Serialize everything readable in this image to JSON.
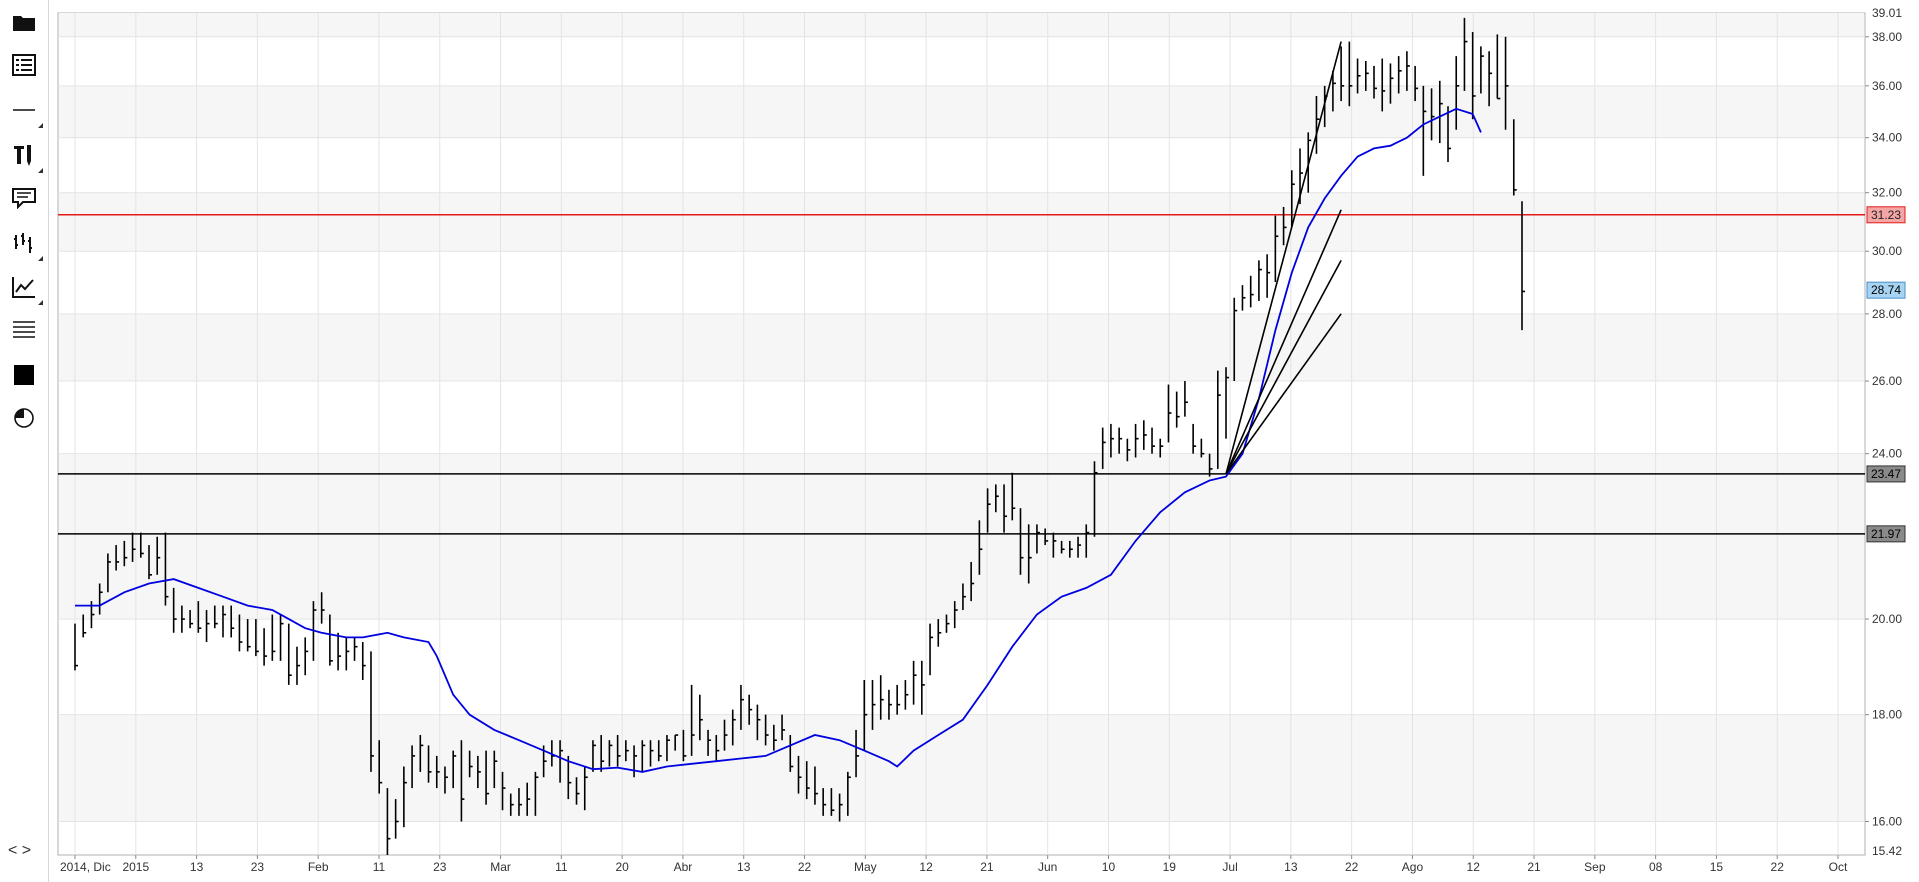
{
  "toolbar": {
    "items": [
      {
        "name": "open-folder-icon"
      },
      {
        "name": "chart-list-icon"
      },
      {
        "name": "horizontal-line-tool-icon"
      },
      {
        "name": "drawing-tools-icon"
      },
      {
        "name": "annotation-comment-icon"
      },
      {
        "name": "bar-style-icon"
      },
      {
        "name": "indicator-chart-icon"
      },
      {
        "name": "lines-menu-icon"
      },
      {
        "name": "fill-square-icon"
      },
      {
        "name": "pie-icon"
      }
    ],
    "nav_label": "< >"
  },
  "chart_data": {
    "type": "ohlc",
    "y_axis": {
      "ticks": [
        "16.00",
        "18.00",
        "20.00",
        "24.00",
        "26.00",
        "28.00",
        "30.00",
        "32.00",
        "34.00",
        "36.00",
        "38.00"
      ],
      "min_label": "15.42",
      "max_label": "39.01",
      "range": [
        15.42,
        39.01
      ],
      "scale": "log"
    },
    "x_axis": {
      "labels": [
        "2014, Dic",
        "2015",
        "13",
        "23",
        "Feb",
        "11",
        "23",
        "Mar",
        "11",
        "20",
        "Abr",
        "13",
        "22",
        "May",
        "12",
        "21",
        "Jun",
        "10",
        "19",
        "Jul",
        "13",
        "22",
        "Ago",
        "12",
        "21",
        "Sep",
        "08",
        "15",
        "22",
        "Oct"
      ]
    },
    "horizontal_lines": [
      {
        "value": 31.23,
        "label": "31.23",
        "color": "#e41b17"
      },
      {
        "value": 23.47,
        "label": "23.47",
        "color": "#000000"
      },
      {
        "value": 21.97,
        "label": "21.97",
        "color": "#000000"
      }
    ],
    "last_price": {
      "value": 28.74,
      "label": "28.74",
      "color": "#a8d4f3"
    },
    "moving_average": {
      "color": "#0000e0",
      "values": [
        [
          0,
          20.3
        ],
        [
          3,
          20.3
        ],
        [
          6,
          20.6
        ],
        [
          9,
          20.8
        ],
        [
          12,
          20.9
        ],
        [
          15,
          20.7
        ],
        [
          18,
          20.5
        ],
        [
          21,
          20.3
        ],
        [
          24,
          20.2
        ],
        [
          26,
          20.0
        ],
        [
          28,
          19.8
        ],
        [
          30,
          19.7
        ],
        [
          33,
          19.6
        ],
        [
          35,
          19.6
        ],
        [
          38,
          19.7
        ],
        [
          40,
          19.6
        ],
        [
          43,
          19.5
        ],
        [
          44,
          19.2
        ],
        [
          46,
          18.4
        ],
        [
          48,
          18.0
        ],
        [
          51,
          17.7
        ],
        [
          54,
          17.5
        ],
        [
          57,
          17.3
        ],
        [
          60,
          17.1
        ],
        [
          63,
          16.95
        ],
        [
          66,
          16.98
        ],
        [
          69,
          16.9
        ],
        [
          72,
          17.0
        ],
        [
          75,
          17.05
        ],
        [
          78,
          17.1
        ],
        [
          81,
          17.15
        ],
        [
          84,
          17.2
        ],
        [
          87,
          17.4
        ],
        [
          90,
          17.6
        ],
        [
          93,
          17.5
        ],
        [
          96,
          17.3
        ],
        [
          99,
          17.1
        ],
        [
          100,
          17.0
        ],
        [
          102,
          17.3
        ],
        [
          105,
          17.6
        ],
        [
          108,
          17.9
        ],
        [
          111,
          18.6
        ],
        [
          114,
          19.4
        ],
        [
          117,
          20.1
        ],
        [
          120,
          20.5
        ],
        [
          123,
          20.7
        ],
        [
          126,
          21.0
        ],
        [
          129,
          21.8
        ],
        [
          132,
          22.5
        ],
        [
          135,
          23.0
        ],
        [
          138,
          23.3
        ],
        [
          140,
          23.4
        ],
        [
          142,
          24.0
        ],
        [
          144,
          25.5
        ],
        [
          146,
          27.5
        ],
        [
          148,
          29.3
        ],
        [
          150,
          30.8
        ],
        [
          152,
          31.8
        ],
        [
          154,
          32.6
        ],
        [
          156,
          33.3
        ],
        [
          158,
          33.6
        ],
        [
          160,
          33.7
        ],
        [
          162,
          34.0
        ],
        [
          164,
          34.5
        ],
        [
          166,
          34.8
        ],
        [
          168,
          35.1
        ],
        [
          170,
          34.9
        ],
        [
          171,
          34.2
        ]
      ]
    },
    "bars": [
      [
        19.9,
        18.9,
        19.0
      ],
      [
        20.1,
        19.6,
        19.7
      ],
      [
        20.4,
        19.8,
        20.1
      ],
      [
        20.8,
        20.1,
        20.6
      ],
      [
        21.5,
        20.6,
        21.3
      ],
      [
        21.7,
        21.1,
        21.3
      ],
      [
        21.8,
        21.2,
        21.4
      ],
      [
        22.0,
        21.3,
        21.6
      ],
      [
        22.0,
        21.4,
        21.5
      ],
      [
        21.7,
        20.9,
        21.0
      ],
      [
        21.9,
        21.0,
        21.4
      ],
      [
        22.0,
        20.3,
        20.5
      ],
      [
        20.7,
        19.7,
        20.0
      ],
      [
        20.3,
        19.7,
        20.0
      ],
      [
        20.2,
        19.8,
        19.9
      ],
      [
        20.4,
        19.7,
        19.8
      ],
      [
        20.2,
        19.5,
        19.9
      ],
      [
        20.3,
        19.8,
        19.9
      ],
      [
        20.3,
        19.6,
        20.1
      ],
      [
        20.3,
        19.6,
        19.8
      ],
      [
        20.1,
        19.3,
        19.5
      ],
      [
        20.0,
        19.3,
        19.4
      ],
      [
        20.0,
        19.2,
        19.3
      ],
      [
        19.8,
        19.0,
        19.2
      ],
      [
        20.1,
        19.1,
        19.3
      ],
      [
        20.1,
        19.1,
        19.9
      ],
      [
        19.9,
        18.6,
        18.8
      ],
      [
        19.4,
        18.6,
        19.0
      ],
      [
        19.6,
        18.8,
        19.3
      ],
      [
        20.4,
        19.1,
        20.2
      ],
      [
        20.6,
        19.9,
        20.2
      ],
      [
        20.1,
        19.0,
        19.1
      ],
      [
        19.7,
        18.9,
        19.2
      ],
      [
        19.6,
        18.9,
        19.3
      ],
      [
        19.6,
        19.1,
        19.4
      ],
      [
        19.5,
        18.7,
        19.0
      ],
      [
        19.3,
        16.9,
        17.2
      ],
      [
        17.5,
        16.5,
        16.7
      ],
      [
        16.6,
        15.42,
        15.7
      ],
      [
        16.4,
        15.7,
        16.0
      ],
      [
        17.0,
        15.9,
        16.7
      ],
      [
        17.4,
        16.6,
        17.2
      ],
      [
        17.6,
        16.9,
        17.4
      ],
      [
        17.4,
        16.7,
        16.9
      ],
      [
        17.2,
        16.6,
        16.9
      ],
      [
        17.0,
        16.5,
        16.8
      ],
      [
        17.3,
        16.6,
        17.2
      ],
      [
        17.5,
        16.0,
        16.4
      ],
      [
        17.3,
        16.8,
        17.0
      ],
      [
        17.2,
        16.6,
        16.9
      ],
      [
        17.3,
        16.3,
        16.5
      ],
      [
        17.3,
        16.6,
        17.1
      ],
      [
        16.9,
        16.2,
        16.6
      ],
      [
        16.5,
        16.1,
        16.3
      ],
      [
        16.6,
        16.1,
        16.3
      ],
      [
        16.7,
        16.1,
        16.4
      ],
      [
        16.9,
        16.1,
        16.8
      ],
      [
        17.4,
        16.8,
        17.1
      ],
      [
        17.5,
        17.0,
        17.2
      ],
      [
        17.5,
        16.7,
        17.3
      ],
      [
        17.2,
        16.4,
        16.7
      ],
      [
        16.8,
        16.3,
        16.5
      ],
      [
        17.0,
        16.2,
        16.8
      ],
      [
        17.5,
        16.9,
        17.4
      ],
      [
        17.6,
        16.9,
        17.1
      ],
      [
        17.5,
        17.0,
        17.4
      ],
      [
        17.6,
        17.0,
        17.2
      ],
      [
        17.5,
        17.1,
        17.3
      ],
      [
        17.4,
        16.8,
        17.2
      ],
      [
        17.5,
        16.9,
        17.4
      ],
      [
        17.5,
        17.0,
        17.3
      ],
      [
        17.5,
        17.1,
        17.2
      ],
      [
        17.6,
        17.1,
        17.5
      ],
      [
        17.6,
        17.3,
        17.6
      ],
      [
        17.7,
        17.1,
        17.2
      ],
      [
        18.6,
        17.2,
        17.6
      ],
      [
        18.4,
        17.5,
        17.9
      ],
      [
        17.7,
        17.2,
        17.5
      ],
      [
        17.6,
        17.1,
        17.3
      ],
      [
        17.9,
        17.3,
        17.6
      ],
      [
        18.1,
        17.4,
        17.9
      ],
      [
        18.6,
        17.7,
        18.3
      ],
      [
        18.4,
        17.8,
        18.1
      ],
      [
        18.2,
        17.5,
        17.9
      ],
      [
        18.0,
        17.4,
        17.6
      ],
      [
        17.8,
        17.3,
        17.5
      ],
      [
        18.0,
        17.5,
        17.7
      ],
      [
        17.6,
        16.9,
        17.0
      ],
      [
        17.2,
        16.5,
        16.8
      ],
      [
        17.1,
        16.4,
        16.6
      ],
      [
        17.0,
        16.3,
        16.5
      ],
      [
        16.6,
        16.1,
        16.3
      ],
      [
        16.6,
        16.1,
        16.2
      ],
      [
        16.5,
        16.0,
        16.3
      ],
      [
        16.9,
        16.1,
        16.8
      ],
      [
        17.7,
        16.8,
        17.2
      ],
      [
        18.7,
        17.3,
        18.0
      ],
      [
        18.7,
        17.7,
        18.2
      ],
      [
        18.8,
        17.9,
        18.3
      ],
      [
        18.5,
        17.9,
        18.2
      ],
      [
        18.6,
        18.0,
        18.2
      ],
      [
        18.7,
        18.1,
        18.4
      ],
      [
        19.1,
        18.2,
        18.8
      ],
      [
        19.1,
        18.0,
        18.6
      ],
      [
        19.9,
        18.8,
        19.6
      ],
      [
        20.0,
        19.4,
        19.7
      ],
      [
        20.1,
        19.7,
        19.9
      ],
      [
        20.4,
        19.8,
        20.2
      ],
      [
        20.8,
        20.2,
        20.5
      ],
      [
        21.3,
        20.4,
        20.8
      ],
      [
        22.3,
        21.0,
        21.6
      ],
      [
        23.1,
        22.0,
        22.7
      ],
      [
        23.2,
        22.5,
        22.9
      ],
      [
        23.2,
        22.0,
        22.4
      ],
      [
        23.5,
        22.3,
        22.6
      ],
      [
        22.6,
        21.0,
        21.4
      ],
      [
        22.2,
        20.8,
        21.4
      ],
      [
        22.2,
        21.5,
        22.0
      ],
      [
        22.1,
        21.7,
        21.8
      ],
      [
        22.0,
        21.4,
        21.8
      ],
      [
        21.8,
        21.5,
        21.6
      ],
      [
        21.8,
        21.4,
        21.6
      ],
      [
        21.9,
        21.4,
        21.7
      ],
      [
        22.2,
        21.4,
        22.0
      ],
      [
        23.8,
        21.9,
        23.5
      ],
      [
        24.7,
        23.6,
        24.3
      ],
      [
        24.8,
        23.9,
        24.4
      ],
      [
        24.7,
        24.0,
        24.4
      ],
      [
        24.4,
        23.8,
        24.1
      ],
      [
        24.8,
        23.9,
        24.4
      ],
      [
        24.9,
        24.1,
        24.5
      ],
      [
        24.7,
        24.0,
        24.2
      ],
      [
        24.4,
        23.9,
        24.2
      ],
      [
        25.9,
        24.3,
        25.1
      ],
      [
        25.7,
        24.7,
        25.0
      ],
      [
        26.0,
        25.0,
        25.4
      ],
      [
        24.8,
        24.0,
        24.2
      ],
      [
        24.4,
        23.9,
        24.0
      ],
      [
        24.0,
        23.4,
        23.6
      ],
      [
        26.3,
        23.6,
        25.6
      ],
      [
        26.4,
        24.4,
        26.1
      ],
      [
        28.5,
        26.0,
        28.1
      ],
      [
        28.9,
        28.1,
        28.5
      ],
      [
        29.2,
        28.2,
        28.6
      ],
      [
        29.7,
        28.4,
        29.4
      ],
      [
        29.9,
        28.5,
        29.3
      ],
      [
        31.2,
        29.0,
        30.5
      ],
      [
        31.5,
        30.2,
        30.8
      ],
      [
        32.8,
        30.8,
        32.3
      ],
      [
        33.6,
        31.6,
        32.7
      ],
      [
        34.2,
        32.0,
        33.9
      ],
      [
        35.6,
        33.4,
        34.7
      ],
      [
        36.0,
        34.4,
        35.6
      ],
      [
        36.6,
        35.0,
        36.1
      ],
      [
        37.6,
        35.4,
        36.0
      ],
      [
        37.8,
        35.2,
        36.0
      ],
      [
        37.1,
        35.7,
        36.4
      ],
      [
        37.0,
        35.8,
        36.5
      ],
      [
        36.8,
        35.5,
        35.9
      ],
      [
        37.1,
        35.0,
        35.8
      ],
      [
        36.9,
        35.3,
        36.3
      ],
      [
        37.2,
        35.7,
        36.6
      ],
      [
        37.4,
        35.8,
        36.8
      ],
      [
        36.8,
        35.4,
        35.9
      ],
      [
        36.0,
        32.6,
        35.0
      ],
      [
        35.9,
        33.9,
        34.8
      ],
      [
        36.2,
        33.8,
        35.3
      ],
      [
        35.2,
        33.1,
        33.6
      ],
      [
        37.2,
        34.3,
        36.0
      ],
      [
        38.8,
        35.8,
        37.8
      ],
      [
        38.2,
        34.7,
        35.6
      ],
      [
        37.6,
        35.7,
        37.2
      ],
      [
        37.4,
        35.2,
        36.5
      ],
      [
        38.1,
        35.5,
        35.5
      ],
      [
        38.0,
        34.3,
        36.0
      ],
      [
        34.7,
        31.9,
        32.1
      ],
      [
        31.7,
        27.5,
        28.7
      ]
    ]
  }
}
